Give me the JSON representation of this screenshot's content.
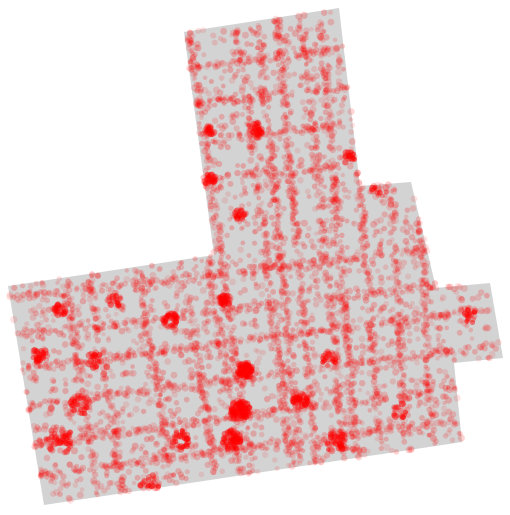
{
  "map": {
    "region_fill": "#d3d3d3",
    "point_color": "#ff0000",
    "point_opacity": 0.16,
    "point_count_background": 5200,
    "point_count_hotspots": 900,
    "seed": 1337
  }
}
